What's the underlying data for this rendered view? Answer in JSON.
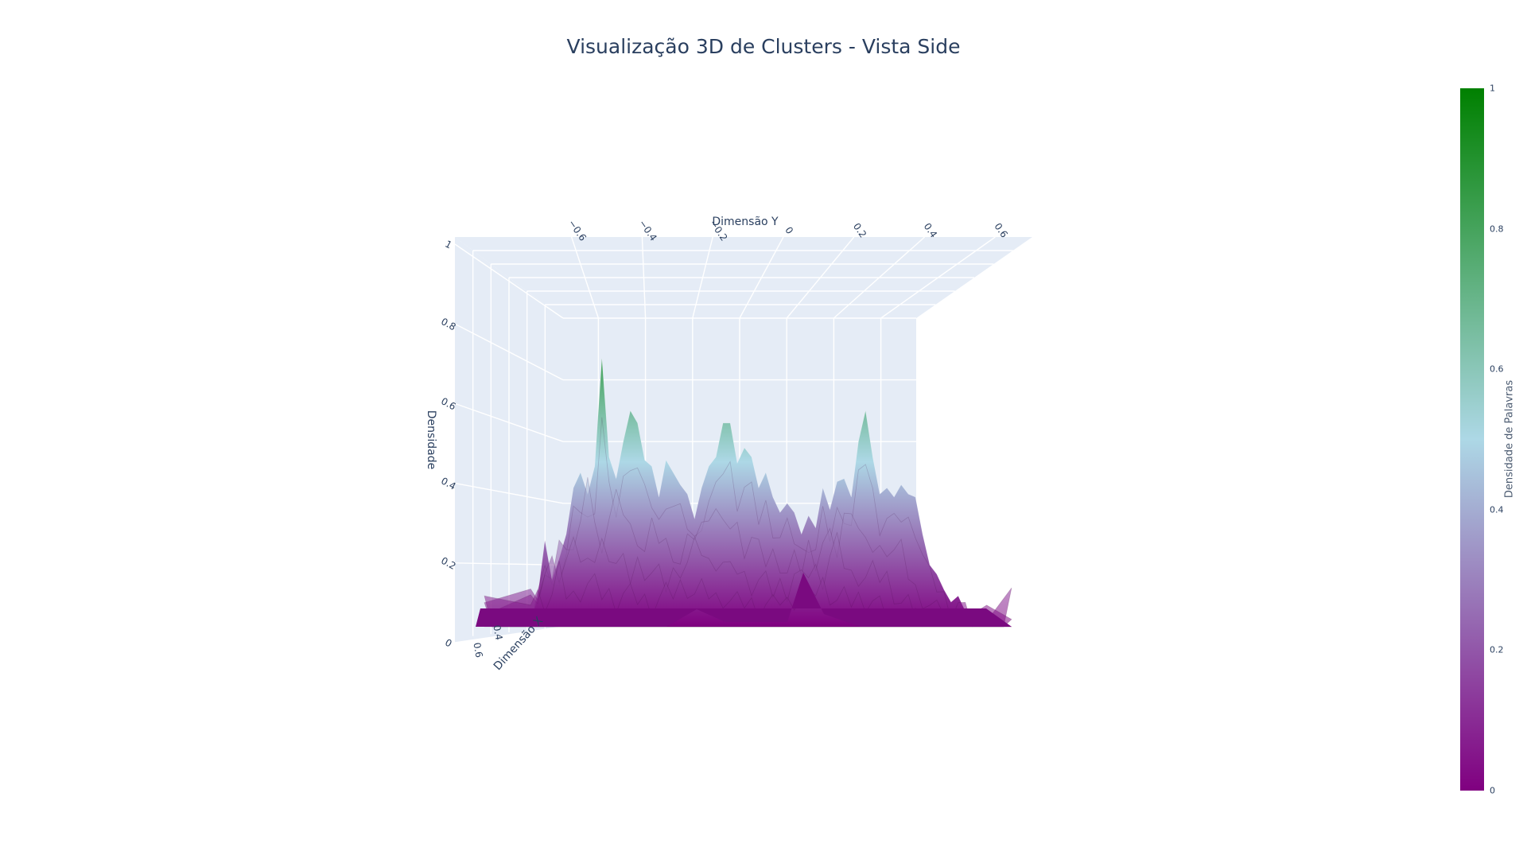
{
  "chart_data": {
    "type": "surface",
    "title": "Visualização 3D de Clusters - Vista Side",
    "x_axis": {
      "label": "Dimensão X",
      "ticks": [
        "0.6",
        "0.4"
      ]
    },
    "y_axis": {
      "label": "Dimensão Y",
      "ticks": [
        "−0.6",
        "−0.4",
        "−0.2",
        "0",
        "0.2",
        "0.4",
        "0.6"
      ],
      "range": [
        -0.75,
        0.75
      ]
    },
    "z_axis": {
      "label": "Densidade",
      "ticks": [
        "0",
        "0.2",
        "0.4",
        "0.6",
        "0.8",
        "1"
      ],
      "range": [
        0,
        1
      ]
    },
    "colorbar": {
      "title": "Densidade de Palavras",
      "ticks": [
        "0",
        "0.2",
        "0.4",
        "0.6",
        "0.8",
        "1"
      ],
      "range": [
        0,
        1
      ],
      "colorscale": [
        "#800080",
        "#add8e6",
        "#008000"
      ]
    },
    "profile_y": [
      -0.73,
      -0.6,
      -0.58,
      -0.56,
      -0.54,
      -0.52,
      -0.5,
      -0.48,
      -0.46,
      -0.44,
      -0.42,
      -0.4,
      -0.38,
      -0.36,
      -0.34,
      -0.32,
      -0.3,
      -0.28,
      -0.26,
      -0.24,
      -0.22,
      -0.2,
      -0.18,
      -0.16,
      -0.14,
      -0.12,
      -0.1,
      -0.08,
      -0.06,
      -0.04,
      -0.02,
      0.0,
      0.02,
      0.04,
      0.06,
      0.08,
      0.1,
      0.12,
      0.14,
      0.16,
      0.18,
      0.2,
      0.22,
      0.24,
      0.26,
      0.28,
      0.3,
      0.32,
      0.34,
      0.36,
      0.38,
      0.4,
      0.42,
      0.44,
      0.46,
      0.48,
      0.5,
      0.52,
      0.54,
      0.56,
      0.58,
      0.6,
      0.62,
      0.64,
      0.66,
      0.68,
      0.75
    ],
    "profile_z": [
      0.0,
      0.0,
      0.1,
      0.28,
      0.15,
      0.22,
      0.3,
      0.45,
      0.5,
      0.43,
      0.52,
      0.87,
      0.55,
      0.48,
      0.6,
      0.7,
      0.66,
      0.54,
      0.52,
      0.42,
      0.54,
      0.5,
      0.46,
      0.43,
      0.35,
      0.45,
      0.52,
      0.55,
      0.66,
      0.66,
      0.53,
      0.58,
      0.55,
      0.45,
      0.5,
      0.42,
      0.37,
      0.4,
      0.37,
      0.3,
      0.36,
      0.32,
      0.45,
      0.38,
      0.47,
      0.48,
      0.42,
      0.6,
      0.7,
      0.55,
      0.43,
      0.45,
      0.42,
      0.46,
      0.43,
      0.42,
      0.3,
      0.2,
      0.17,
      0.12,
      0.08,
      0.1,
      0.05,
      0.02,
      0.0,
      0.0,
      0.0
    ]
  }
}
